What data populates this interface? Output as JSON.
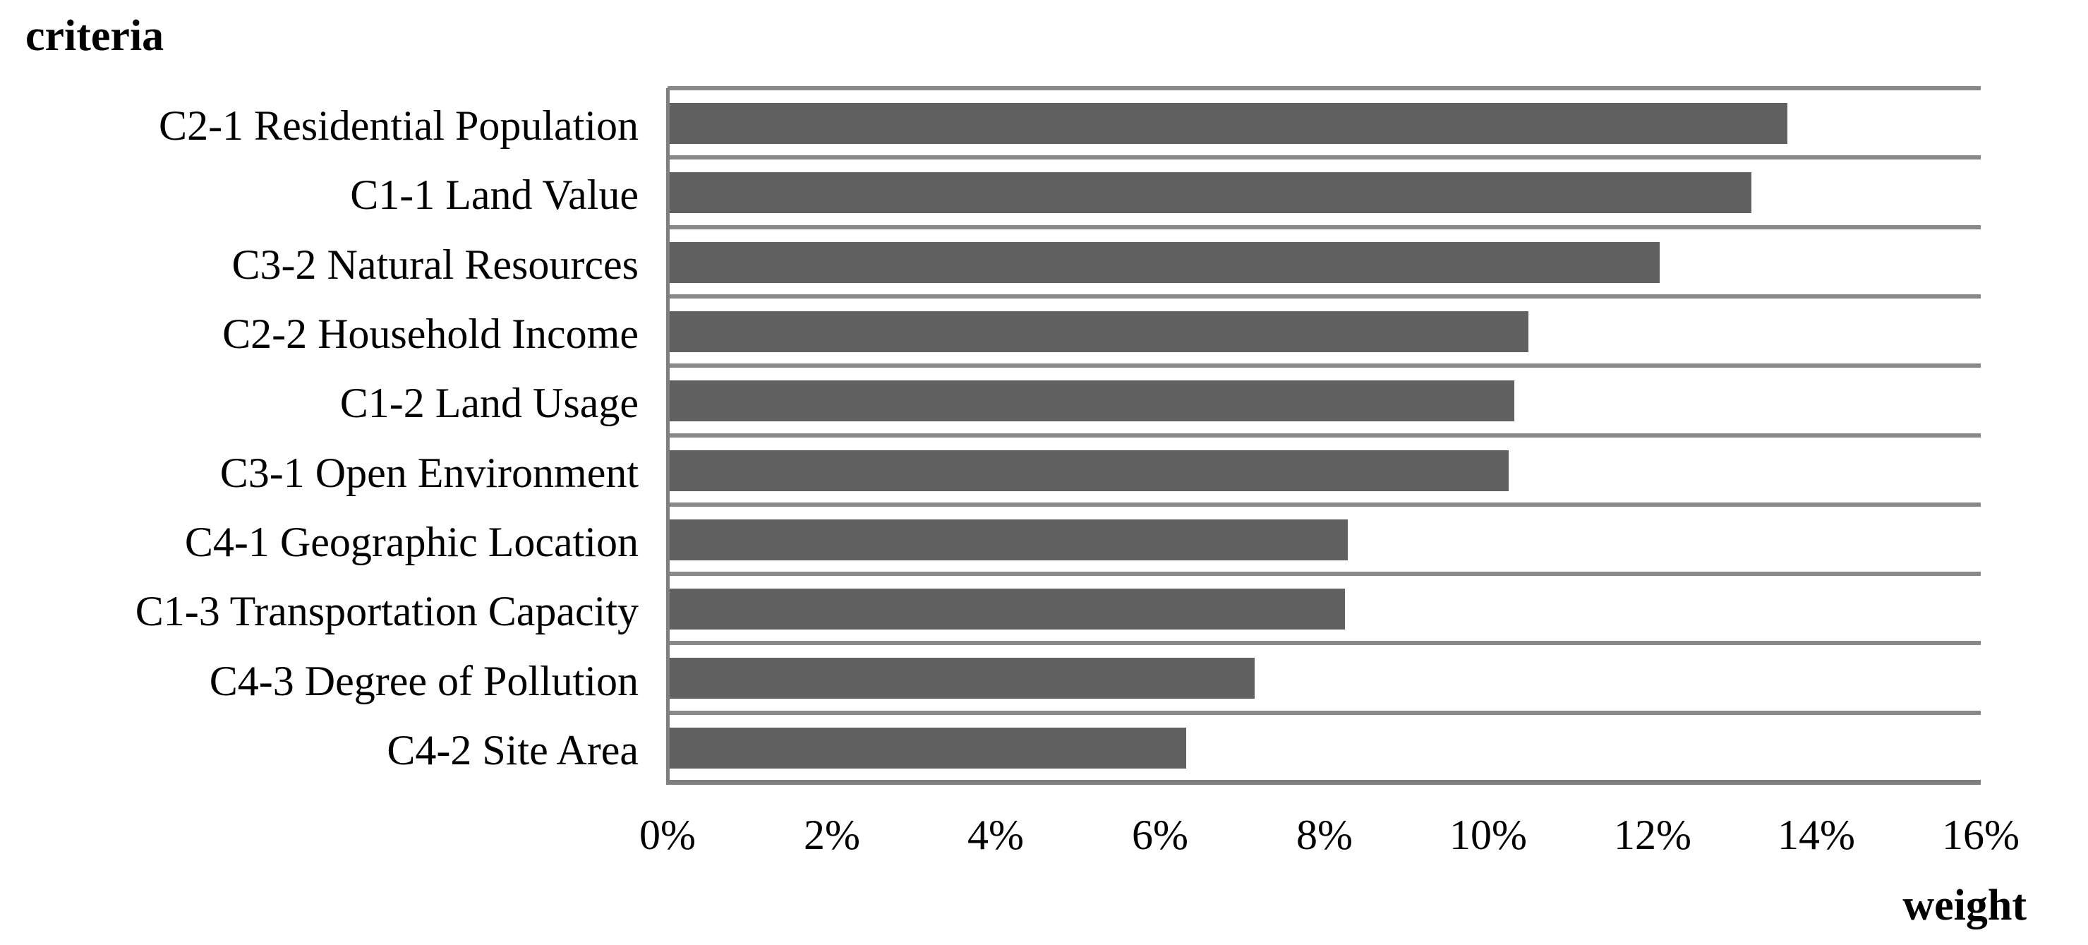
{
  "chart_data": {
    "type": "bar",
    "orientation": "horizontal",
    "title": "",
    "ylabel": "criteria",
    "xlabel": "weight",
    "categories": [
      "C2-1 Residential Population",
      "C1-1 Land Value",
      "C3-2 Natural Resources",
      "C2-2 Household Income",
      "C1-2 Land Usage",
      "C3-1 Open Environment",
      "C4-1 Geographic Location",
      "C1-3 Transportation Capacity",
      "C4-3 Degree of Pollution",
      "C4-2 Site Area"
    ],
    "values": [
      13.64,
      13.21,
      12.09,
      10.49,
      10.32,
      10.25,
      8.29,
      8.25,
      7.15,
      6.32
    ],
    "value_unit": "%",
    "xlim": [
      0,
      16
    ],
    "x_ticks": [
      "0%",
      "2%",
      "4%",
      "6%",
      "8%",
      "10%",
      "12%",
      "14%",
      "16%"
    ],
    "grid": "horizontal-band-separators",
    "legend": "none",
    "bar_color": "#616161",
    "gridline_color": "#898989",
    "axis_color": "#7f7f7f",
    "background_color": "#ffffff"
  }
}
